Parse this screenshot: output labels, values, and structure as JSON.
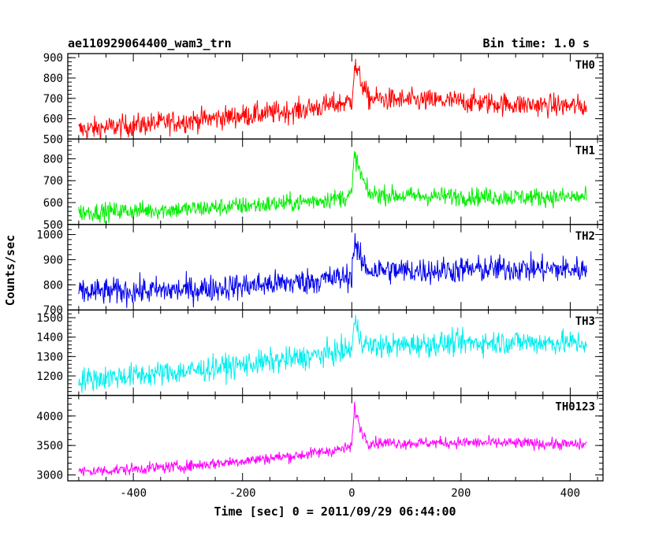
{
  "chart_data": {
    "type": "line",
    "title": "ae110929064400_wam3_trn",
    "subtitle": "Bin time: 1.0 s",
    "xlabel": "Time [sec] 0 = 2011/09/29 06:44:00",
    "ylabel": "Counts/sec",
    "xlim": [
      -520,
      460
    ],
    "xticks": [
      -400,
      -200,
      0,
      200,
      400
    ],
    "data_x_range": [
      -500,
      430
    ],
    "bin_time_s": 1.0,
    "grid": false,
    "panels": [
      {
        "name": "TH0",
        "color": "#ff0000",
        "ylim": [
          500,
          920
        ],
        "yticks": [
          500,
          600,
          700,
          800,
          900
        ],
        "trend": [
          [
            -500,
            545
          ],
          [
            -300,
            590
          ],
          [
            -100,
            640
          ],
          [
            -10,
            680
          ],
          [
            0,
            690
          ],
          [
            5,
            860
          ],
          [
            15,
            800
          ],
          [
            30,
            700
          ],
          [
            100,
            690
          ],
          [
            200,
            685
          ],
          [
            300,
            670
          ],
          [
            430,
            660
          ]
        ],
        "noise": 40
      },
      {
        "name": "TH1",
        "color": "#00ee00",
        "ylim": [
          500,
          890
        ],
        "yticks": [
          500,
          600,
          700,
          800
        ],
        "trend": [
          [
            -500,
            555
          ],
          [
            -300,
            570
          ],
          [
            -100,
            600
          ],
          [
            -10,
            625
          ],
          [
            0,
            640
          ],
          [
            5,
            820
          ],
          [
            15,
            740
          ],
          [
            30,
            640
          ],
          [
            100,
            630
          ],
          [
            200,
            628
          ],
          [
            300,
            625
          ],
          [
            430,
            625
          ]
        ],
        "noise": 30
      },
      {
        "name": "TH2",
        "color": "#0000ee",
        "ylim": [
          700,
          1040
        ],
        "yticks": [
          700,
          800,
          900,
          1000
        ],
        "trend": [
          [
            -500,
            770
          ],
          [
            -300,
            780
          ],
          [
            -100,
            810
          ],
          [
            -10,
            830
          ],
          [
            0,
            840
          ],
          [
            5,
            980
          ],
          [
            15,
            900
          ],
          [
            30,
            860
          ],
          [
            100,
            855
          ],
          [
            200,
            860
          ],
          [
            300,
            865
          ],
          [
            430,
            860
          ]
        ],
        "noise": 38
      },
      {
        "name": "TH3",
        "color": "#00eeee",
        "ylim": [
          1100,
          1540
        ],
        "yticks": [
          1200,
          1300,
          1400,
          1500
        ],
        "trend": [
          [
            -500,
            1180
          ],
          [
            -300,
            1225
          ],
          [
            -100,
            1290
          ],
          [
            -10,
            1330
          ],
          [
            0,
            1340
          ],
          [
            5,
            1480
          ],
          [
            15,
            1400
          ],
          [
            30,
            1350
          ],
          [
            100,
            1360
          ],
          [
            200,
            1370
          ],
          [
            300,
            1375
          ],
          [
            430,
            1370
          ]
        ],
        "noise": 45
      },
      {
        "name": "TH0123",
        "color": "#ff00ff",
        "ylim": [
          2900,
          4350
        ],
        "yticks": [
          3000,
          3500,
          4000
        ],
        "trend": [
          [
            -500,
            3050
          ],
          [
            -300,
            3150
          ],
          [
            -100,
            3330
          ],
          [
            -10,
            3450
          ],
          [
            0,
            3490
          ],
          [
            5,
            4150
          ],
          [
            15,
            3800
          ],
          [
            30,
            3550
          ],
          [
            100,
            3540
          ],
          [
            200,
            3550
          ],
          [
            300,
            3540
          ],
          [
            430,
            3510
          ]
        ],
        "noise": 70
      }
    ]
  }
}
